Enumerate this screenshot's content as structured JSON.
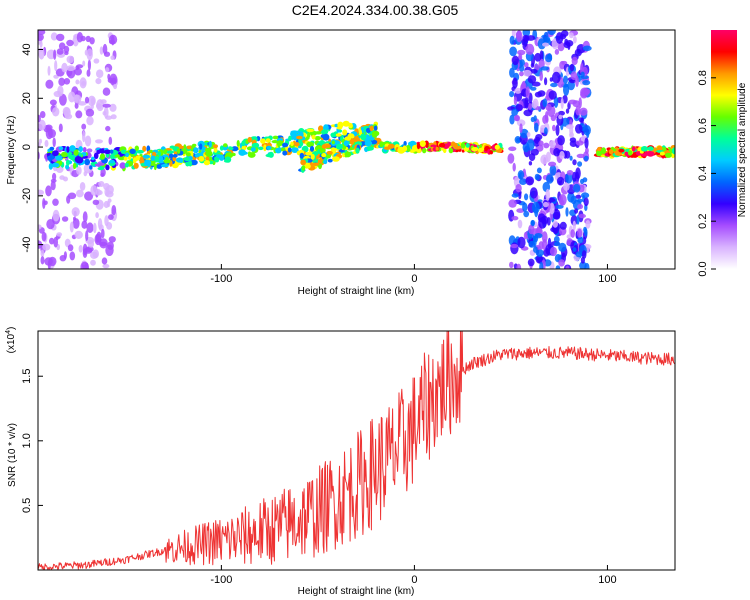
{
  "title": "C2E4.2024.334.00.38.G05",
  "chart_data": [
    {
      "type": "heatmap",
      "title": "C2E4.2024.334.00.38.G05",
      "xlabel": "Height of straight line (km)",
      "ylabel": "Frequency (Hz)",
      "xlim": [
        -195,
        135
      ],
      "ylim": [
        -50,
        48
      ],
      "xticks": [
        -100,
        0,
        100
      ],
      "yticks": [
        -40,
        -20,
        0,
        20,
        40
      ],
      "colorbar": {
        "label": "Normalized spectral amplitude",
        "range": [
          0,
          1
        ],
        "ticks": [
          "0.0",
          "0.2",
          "0.4",
          "0.6",
          "0.8"
        ],
        "colors": [
          "#ffffff",
          "#d9b3ff",
          "#a64dff",
          "#3300ff",
          "#0066ff",
          "#00ccff",
          "#00ff99",
          "#66ff00",
          "#ffff00",
          "#ff9900",
          "#ff0000",
          "#ff0066"
        ]
      },
      "ridges": [
        {
          "x": [
            -190,
            -160,
            -130,
            -100,
            -70,
            -50,
            -35,
            -25,
            -15,
            0,
            20,
            45
          ],
          "y": [
            -4,
            -5,
            -4,
            -2,
            1,
            4,
            6,
            3,
            0,
            0,
            0,
            -1
          ]
        },
        {
          "x": [
            -60,
            -45,
            -30,
            -20
          ],
          "y": [
            -6,
            -3,
            2,
            7
          ]
        },
        {
          "x": [
            95,
            110,
            135
          ],
          "y": [
            -2,
            -2,
            -2
          ]
        }
      ],
      "noise_bands": [
        [
          -195,
          -155
        ],
        [
          50,
          90
        ]
      ]
    },
    {
      "type": "line",
      "xlabel": "Height of straight line (km)",
      "ylabel": "SNR (10 * v/v)",
      "yscale_label": "(x10",
      "yscale_exp": "4",
      "xlim": [
        -195,
        135
      ],
      "ylim": [
        0,
        1.85
      ],
      "xticks": [
        -100,
        0,
        100
      ],
      "yticks": [
        "0.5",
        "1.0",
        "1.5"
      ],
      "color": "#ee3333",
      "envelope": {
        "x": [
          -195,
          -170,
          -150,
          -130,
          -110,
          -90,
          -70,
          -50,
          -40,
          -30,
          -20,
          -10,
          0,
          10,
          20,
          30,
          45,
          60,
          80,
          100,
          120,
          135
        ],
        "y": [
          0.02,
          0.04,
          0.08,
          0.15,
          0.2,
          0.25,
          0.33,
          0.45,
          0.55,
          0.65,
          0.78,
          0.9,
          1.1,
          1.35,
          1.5,
          1.6,
          1.67,
          1.68,
          1.68,
          1.66,
          1.64,
          1.63
        ]
      }
    }
  ]
}
